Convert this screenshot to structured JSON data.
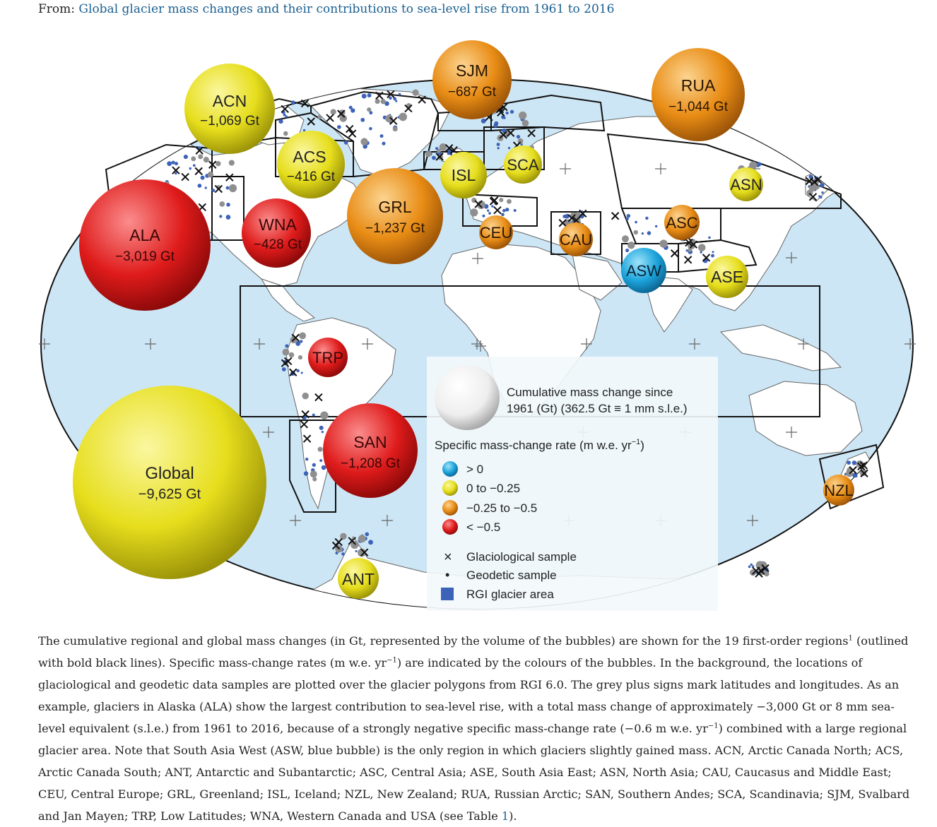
{
  "header": {
    "prefix": "From:",
    "link_text": "Global glacier mass changes and their contributions to sea-level rise from 1961 to 2016"
  },
  "colors": {
    "ocean": "#cde6f5",
    "land": "#ffffff",
    "glacier": "#3d63b8",
    "positive": "#1ea7dd",
    "low": "#e8e020",
    "mid": "#e8901a",
    "high": "#e02020"
  },
  "bubbles": [
    {
      "code": "ALA",
      "value": "−3,019 Gt",
      "color": "high"
    },
    {
      "code": "ACN",
      "value": "−1,069 Gt",
      "color": "low"
    },
    {
      "code": "ACS",
      "value": "−416 Gt",
      "color": "low"
    },
    {
      "code": "WNA",
      "value": "−428 Gt",
      "color": "high"
    },
    {
      "code": "GRL",
      "value": "−1,237 Gt",
      "color": "mid"
    },
    {
      "code": "SJM",
      "value": "−687 Gt",
      "color": "mid"
    },
    {
      "code": "RUA",
      "value": "−1,044 Gt",
      "color": "mid"
    },
    {
      "code": "ISL",
      "value": "",
      "color": "low"
    },
    {
      "code": "SCA",
      "value": "",
      "color": "low"
    },
    {
      "code": "CEU",
      "value": "",
      "color": "mid"
    },
    {
      "code": "CAU",
      "value": "",
      "color": "mid"
    },
    {
      "code": "ASN",
      "value": "",
      "color": "low"
    },
    {
      "code": "ASC",
      "value": "",
      "color": "mid"
    },
    {
      "code": "ASW",
      "value": "",
      "color": "positive"
    },
    {
      "code": "ASE",
      "value": "",
      "color": "low"
    },
    {
      "code": "TRP",
      "value": "",
      "color": "high"
    },
    {
      "code": "SAN",
      "value": "−1,208 Gt",
      "color": "high"
    },
    {
      "code": "NZL",
      "value": "",
      "color": "mid"
    },
    {
      "code": "ANT",
      "value": "",
      "color": "low"
    },
    {
      "code": "Global",
      "value": "−9,625 Gt",
      "color": "low"
    }
  ],
  "legend": {
    "size_title_line1": "Cumulative mass change since",
    "size_title_line2": "1961 (Gt) (362.5 Gt ≡ 1 mm s.l.e.)",
    "rate_title": "Specific mass-change rate (m w.e. yr",
    "rate_title_sup": "−1",
    "rate_title_end": ")",
    "classes": [
      {
        "label": "> 0",
        "color": "positive"
      },
      {
        "label": "0 to −0.25",
        "color": "low"
      },
      {
        "label": "−0.25 to −0.5",
        "color": "mid"
      },
      {
        "label": "< −0.5",
        "color": "high"
      }
    ],
    "markers": [
      {
        "symbol": "×",
        "label": "Glaciological sample"
      },
      {
        "symbol": "•",
        "label": "Geodetic sample"
      },
      {
        "symbol": "square",
        "label": "RGI glacier area"
      }
    ]
  },
  "caption": {
    "p1": "The cumulative regional and global mass changes (in Gt, represented by the volume of the bubbles) are shown for the 19 first-order regions",
    "p1_sup": "1",
    "p2": " (outlined with bold black lines). Specific mass-change rates (m w.e. yr",
    "p2_sup": "−1",
    "p3": ") are indicated by the colours of the bubbles. In the background, the locations of glaciological and geodetic data samples are plotted over the glacier polygons from RGI 6.0. The grey plus signs mark latitudes and longitudes. As an example, glaciers in Alaska (ALA) show the largest contribution to sea-level rise, with a total mass change of approximately −3,000 Gt or 8 mm sea-level equivalent (s.l.e.) from 1961 to 2016, because of a strongly negative specific mass-change rate (−0.6 m w.e. yr",
    "p3_sup": "−1",
    "p4": ") combined with a large regional glacier area. Note that South Asia West (ASW, blue bubble) is the only region in which glaciers slightly gained mass. ACN, Arctic Canada North; ACS, Arctic Canada South; ANT, Antarctic and Subantarctic; ASC, Central Asia; ASE, South Asia East; ASN, North Asia; CAU, Caucasus and Middle East; CEU, Central Europe; GRL, Greenland; ISL, Iceland; NZL, New Zealand; RUA, Russian Arctic; SAN, Southern Andes; SCA, Scandinavia; SJM, Svalbard and Jan Mayen; TRP, Low Latitudes; WNA, Western Canada and USA (see Table ",
    "table_link": "1",
    "p5": ")."
  }
}
